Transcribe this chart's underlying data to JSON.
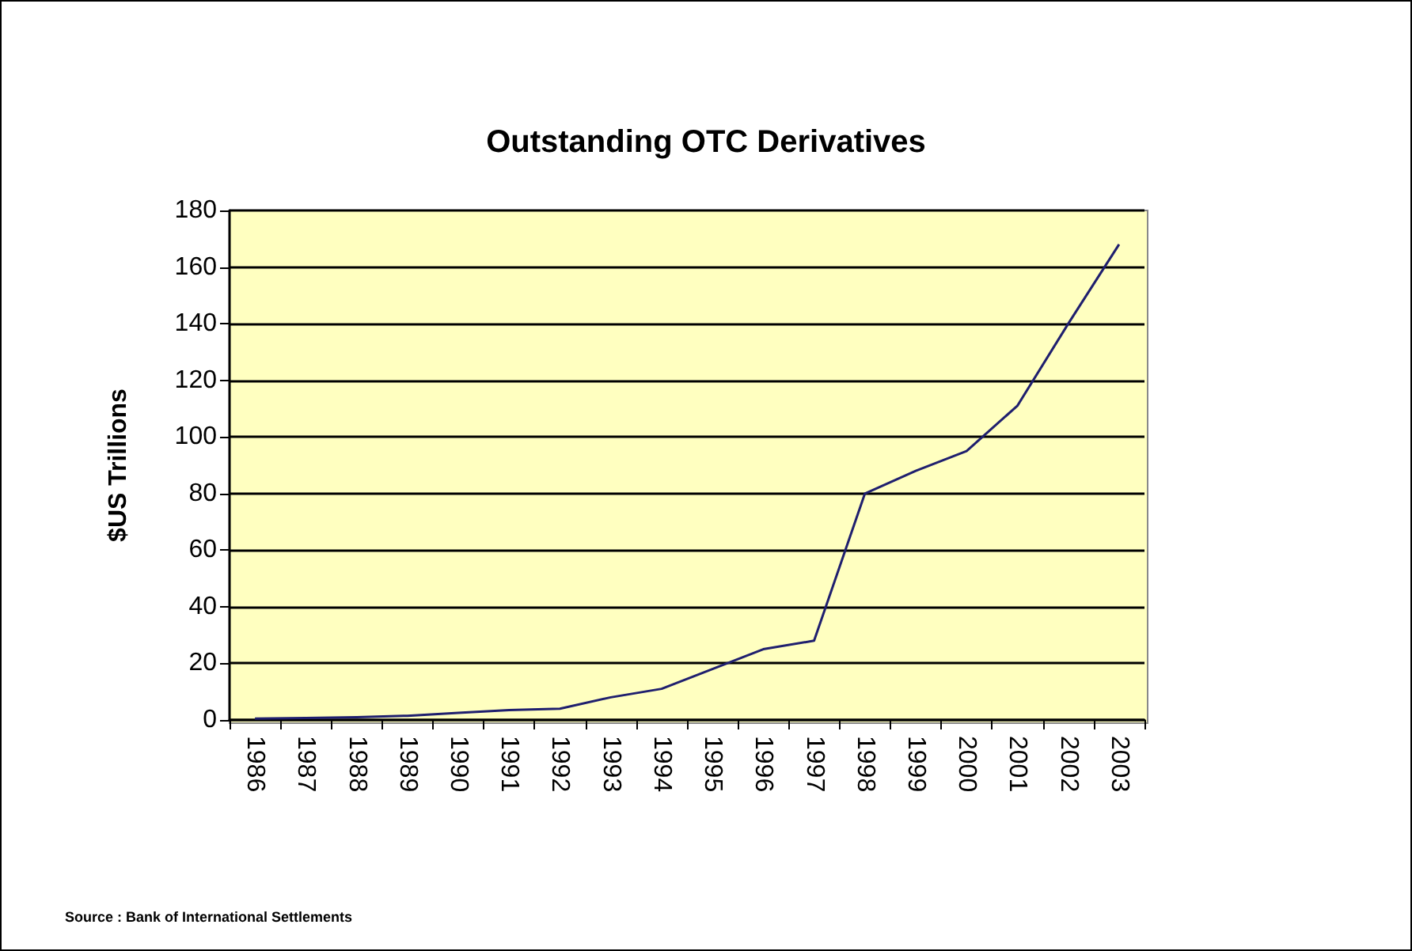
{
  "chart_data": {
    "type": "line",
    "title": "Outstanding OTC Derivatives",
    "ylabel": "$US Trillions",
    "categories": [
      "1986",
      "1987",
      "1988",
      "1989",
      "1990",
      "1991",
      "1992",
      "1993",
      "1994",
      "1995",
      "1996",
      "1997",
      "1998",
      "1999",
      "2000",
      "2001",
      "2002",
      "2003"
    ],
    "series": [
      {
        "color": "#1f1f6e",
        "values": [
          0.5,
          0.7,
          1,
          1.5,
          2.5,
          3.5,
          4,
          8,
          11,
          18,
          25,
          28,
          80,
          88,
          95,
          111,
          140,
          168
        ]
      }
    ],
    "ylim": [
      0,
      180
    ],
    "yticks": [
      0,
      20,
      40,
      60,
      80,
      100,
      120,
      140,
      160,
      180
    ],
    "grid": "y",
    "marker": "none",
    "line_style": "solid",
    "annotations": [
      "Source : Bank of International Settlements"
    ]
  }
}
